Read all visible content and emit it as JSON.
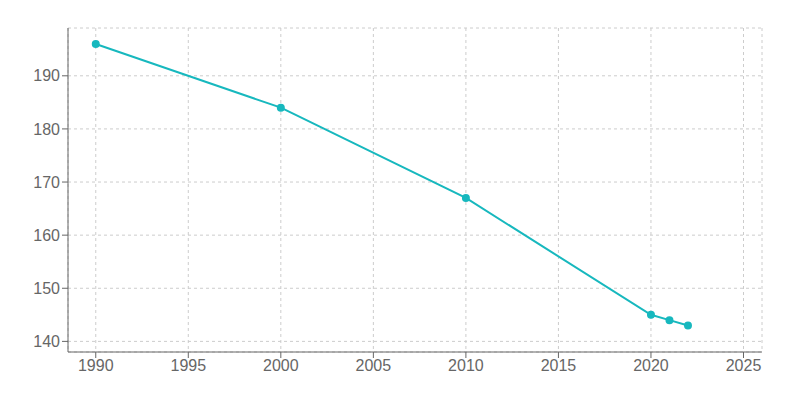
{
  "chart_data": {
    "type": "line",
    "x": [
      1990,
      2000,
      2010,
      2020,
      2021,
      2022
    ],
    "values": [
      196,
      184,
      167,
      145,
      144,
      143
    ],
    "color": "#17b8be",
    "marker": "circle",
    "xlim": [
      1988.5,
      2026
    ],
    "ylim": [
      138,
      199
    ],
    "xticks": [
      1990,
      1995,
      2000,
      2005,
      2010,
      2015,
      2020,
      2025
    ],
    "yticks": [
      140,
      150,
      160,
      170,
      180,
      190
    ],
    "grid": true
  }
}
